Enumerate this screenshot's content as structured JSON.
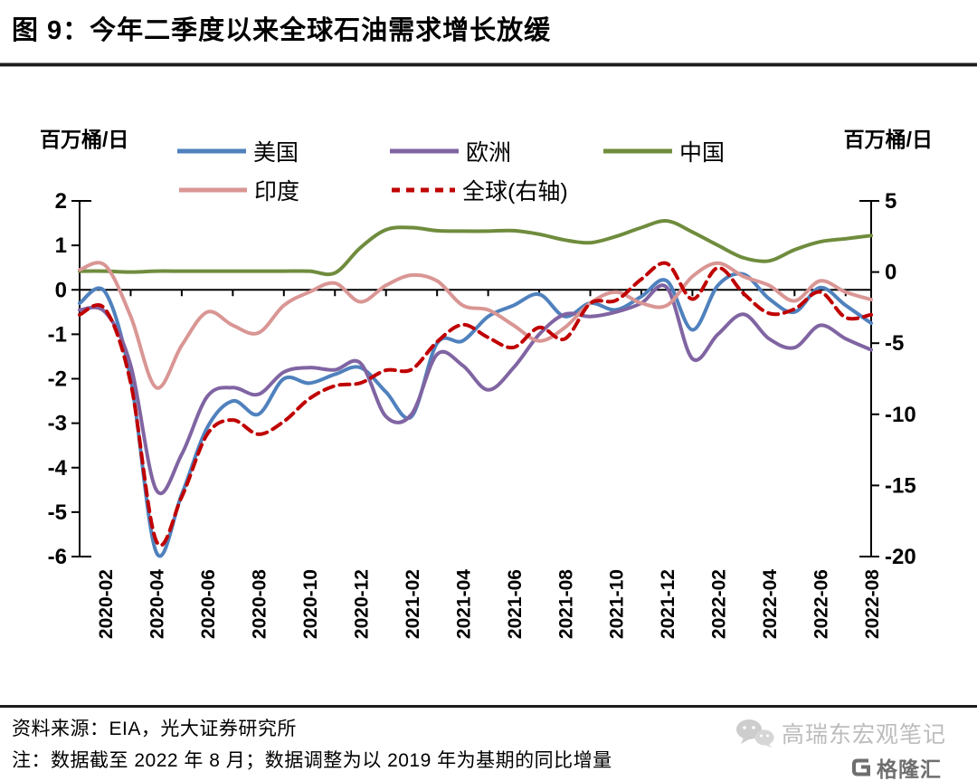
{
  "title": "图 9：今年二季度以来全球石油需求增长放缓",
  "footer": {
    "source": "资料来源：EIA，光大证券研究所",
    "note": "注：数据截至 2022 年 8 月；数据调整为以 2019 年为基期的同比增量"
  },
  "watermark": {
    "account": "高瑞东宏观笔记",
    "platform": "格隆汇"
  },
  "chart_data": {
    "type": "line",
    "title": "图 9：今年二季度以来全球石油需求增长放缓",
    "months": [
      "2020-01",
      "2020-02",
      "2020-03",
      "2020-04",
      "2020-05",
      "2020-06",
      "2020-07",
      "2020-08",
      "2020-09",
      "2020-10",
      "2020-11",
      "2020-12",
      "2021-01",
      "2021-02",
      "2021-03",
      "2021-04",
      "2021-05",
      "2021-06",
      "2021-07",
      "2021-08",
      "2021-09",
      "2021-10",
      "2021-11",
      "2021-12",
      "2022-01",
      "2022-02",
      "2022-03",
      "2022-04",
      "2022-05",
      "2022-06",
      "2022-07",
      "2022-08"
    ],
    "x_tick_labels": [
      "2020-02",
      "2020-04",
      "2020-06",
      "2020-08",
      "2020-10",
      "2020-12",
      "2021-02",
      "2021-04",
      "2021-06",
      "2021-08",
      "2021-10",
      "2021-12",
      "2022-02",
      "2022-04",
      "2022-06",
      "2022-08"
    ],
    "left_axis": {
      "unit": "百万桶/日",
      "range": [
        -6,
        2
      ],
      "ticks": [
        2,
        1,
        0,
        -1,
        -2,
        -3,
        -4,
        -5,
        -6
      ]
    },
    "right_axis": {
      "unit": "百万桶/日",
      "range": [
        -20,
        5
      ],
      "ticks": [
        5,
        0,
        -5,
        -10,
        -15,
        -20
      ]
    },
    "grid": false,
    "legend_position": "top",
    "series": [
      {
        "name": "美国",
        "axis": "left",
        "color": "#4F81BD",
        "style": "solid",
        "values": [
          -0.3,
          -0.05,
          -2.0,
          -5.9,
          -4.6,
          -3.1,
          -2.5,
          -2.8,
          -2.0,
          -2.1,
          -1.9,
          -1.75,
          -2.3,
          -2.85,
          -1.2,
          -1.15,
          -0.6,
          -0.35,
          -0.1,
          -0.6,
          -0.3,
          -0.45,
          -0.15,
          0.2,
          -0.9,
          0.1,
          0.35,
          -0.2,
          -0.5,
          0.05,
          -0.35,
          -0.75
        ]
      },
      {
        "name": "欧洲",
        "axis": "left",
        "color": "#8064A2",
        "style": "solid",
        "values": [
          -0.45,
          -0.5,
          -1.7,
          -4.5,
          -3.7,
          -2.4,
          -2.2,
          -2.35,
          -1.85,
          -1.75,
          -1.8,
          -1.65,
          -2.85,
          -2.8,
          -1.45,
          -1.7,
          -2.25,
          -1.75,
          -1.0,
          -0.55,
          -0.6,
          -0.5,
          -0.3,
          0.05,
          -1.55,
          -1.0,
          -0.55,
          -1.1,
          -1.3,
          -0.8,
          -1.1,
          -1.35
        ]
      },
      {
        "name": "中国",
        "axis": "left",
        "color": "#6F8C3D",
        "style": "solid",
        "values": [
          0.42,
          0.42,
          0.4,
          0.42,
          0.42,
          0.42,
          0.42,
          0.42,
          0.42,
          0.42,
          0.38,
          0.95,
          1.35,
          1.4,
          1.33,
          1.32,
          1.32,
          1.33,
          1.25,
          1.12,
          1.06,
          1.2,
          1.4,
          1.55,
          1.3,
          1.0,
          0.72,
          0.65,
          0.9,
          1.08,
          1.15,
          1.22
        ]
      },
      {
        "name": "印度",
        "axis": "left",
        "color": "#D99694",
        "style": "solid",
        "values": [
          0.45,
          0.55,
          -0.6,
          -2.2,
          -1.25,
          -0.5,
          -0.8,
          -0.97,
          -0.35,
          -0.05,
          0.15,
          -0.27,
          0.1,
          0.33,
          0.2,
          -0.35,
          -0.45,
          -0.8,
          -1.15,
          -0.85,
          -0.3,
          -0.05,
          -0.3,
          -0.35,
          0.3,
          0.6,
          0.3,
          0.1,
          -0.25,
          0.2,
          -0.05,
          -0.22
        ]
      },
      {
        "name": "全球(右轴)",
        "axis": "right",
        "color": "#C00000",
        "style": "dashed",
        "values": [
          -3.0,
          -2.6,
          -7.8,
          -18.9,
          -15.8,
          -11.4,
          -10.4,
          -11.4,
          -10.5,
          -8.9,
          -8.0,
          -7.8,
          -6.9,
          -6.85,
          -4.9,
          -3.7,
          -4.6,
          -5.3,
          -3.9,
          -4.7,
          -2.2,
          -2.0,
          -0.5,
          0.6,
          -1.9,
          0.3,
          -1.5,
          -2.9,
          -2.6,
          -1.4,
          -3.2,
          -3.0
        ]
      }
    ]
  }
}
